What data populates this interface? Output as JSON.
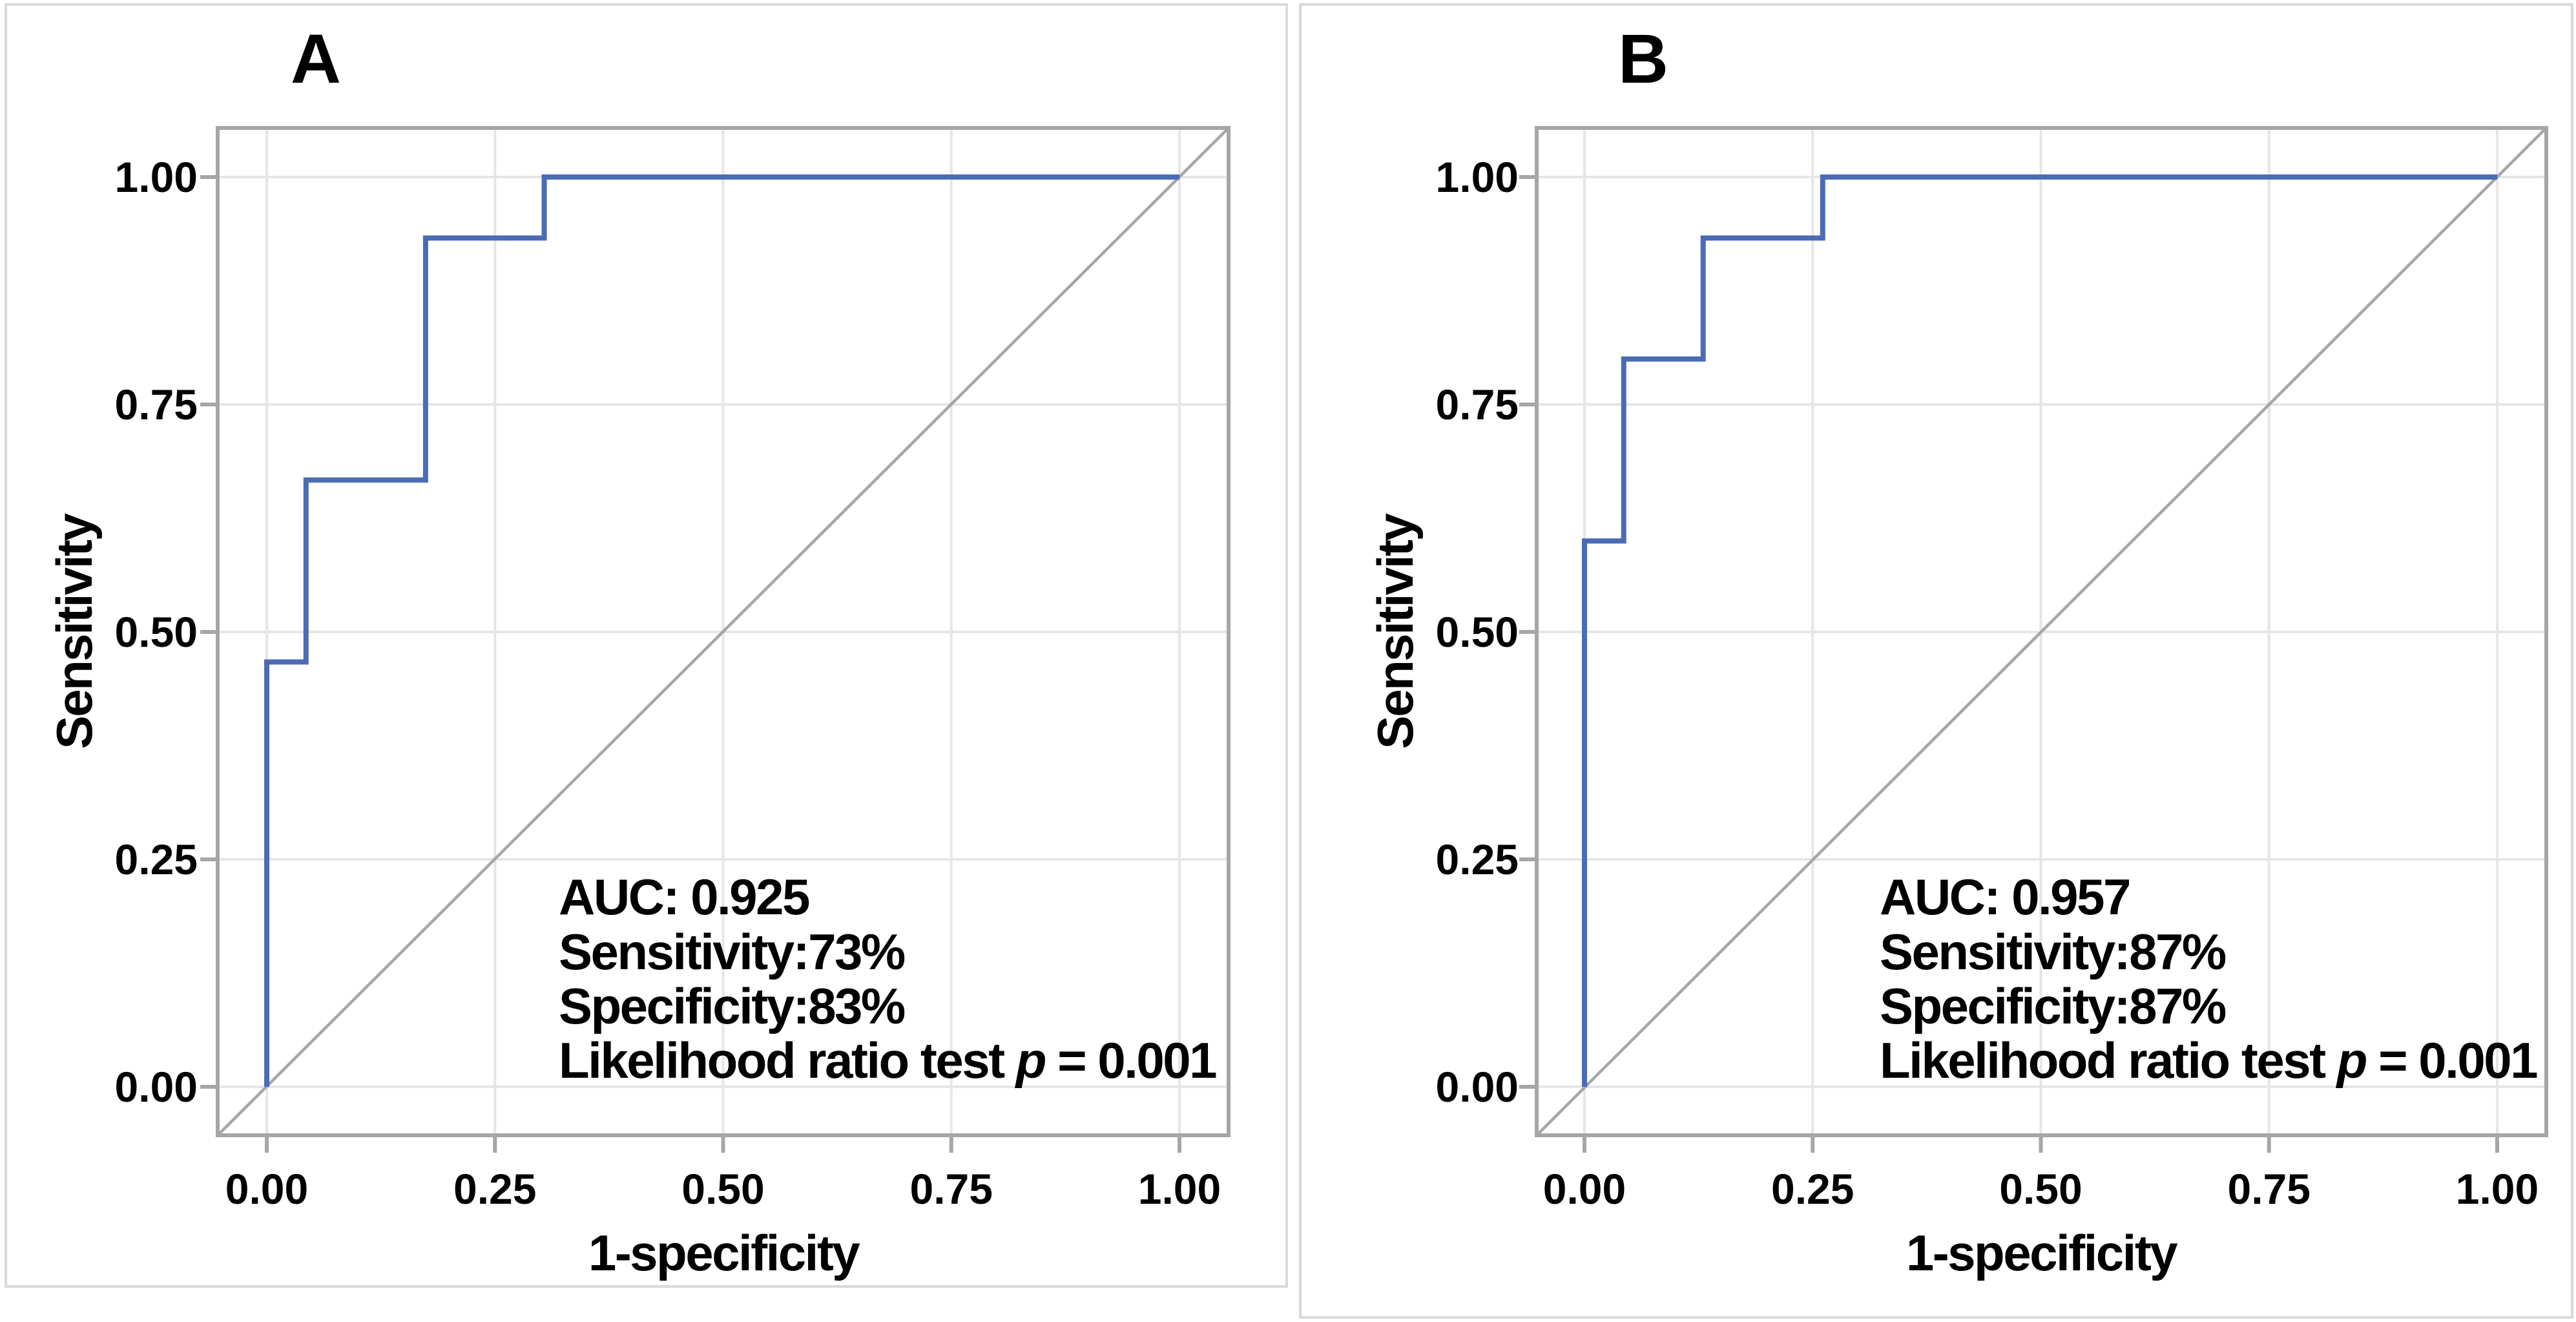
{
  "figure": {
    "background": "#ffffff",
    "colors": {
      "curve": "#4a6cb5",
      "reference_line": "#a6a6a6",
      "gridline": "#e6e6e6",
      "frame": "#a6a6a6",
      "tick": "#a6a6a6",
      "panel_border": "#d9d9d9",
      "text": "#000000"
    }
  },
  "panels": [
    {
      "letter": "A",
      "x_axis": {
        "label": "1-specificity",
        "tick_labels": [
          "0.00",
          "0.25",
          "0.50",
          "0.75",
          "1.00"
        ]
      },
      "y_axis": {
        "label": "Sensitivity",
        "tick_labels": [
          "1.00",
          "0.75",
          "0.50",
          "0.25",
          "0.00"
        ]
      },
      "annotation": {
        "auc_line": "AUC: 0.925",
        "sensitivity_line": "Sensitivity:73%",
        "specificity_line": "Specificity:83%",
        "lr_prefix": "Likelihood ratio test ",
        "lr_p": "p",
        "lr_suffix": " = 0.001"
      }
    },
    {
      "letter": "B",
      "x_axis": {
        "label": "1-specificity",
        "tick_labels": [
          "0.00",
          "0.25",
          "0.50",
          "0.75",
          "1.00"
        ]
      },
      "y_axis": {
        "label": "Sensitivity",
        "tick_labels": [
          "1.00",
          "0.75",
          "0.50",
          "0.25",
          "0.00"
        ]
      },
      "annotation": {
        "auc_line": "AUC: 0.957",
        "sensitivity_line": "Sensitivity:87%",
        "specificity_line": "Specificity:87%",
        "lr_prefix": "Likelihood ratio test ",
        "lr_p": "p",
        "lr_suffix": " = 0.001"
      }
    }
  ],
  "chart_data": [
    {
      "type": "line",
      "title": "A",
      "xlabel": "1-specificity",
      "ylabel": "Sensitivity",
      "xlim": [
        0,
        1
      ],
      "ylim": [
        0,
        1
      ],
      "x_ticks": [
        0,
        0.25,
        0.5,
        0.75,
        1.0
      ],
      "y_ticks": [
        0,
        0.25,
        0.5,
        0.75,
        1.0
      ],
      "grid": true,
      "legend": "none",
      "series": [
        {
          "name": "ROC curve",
          "style": "step",
          "color": "#4a6cb5",
          "x": [
            0,
            0,
            0.043,
            0.043,
            0.174,
            0.174,
            0.304,
            0.304,
            1.0
          ],
          "y": [
            0,
            0.467,
            0.467,
            0.667,
            0.667,
            0.933,
            0.933,
            1.0,
            1.0
          ]
        },
        {
          "name": "Reference diagonal",
          "style": "straight",
          "color": "#a6a6a6",
          "x": [
            0,
            1
          ],
          "y": [
            0,
            1
          ]
        }
      ],
      "annotations": {
        "AUC": 0.925,
        "sensitivity_pct": 73,
        "specificity_pct": 83,
        "likelihood_ratio_test_p": 0.001
      }
    },
    {
      "type": "line",
      "title": "B",
      "xlabel": "1-specificity",
      "ylabel": "Sensitivity",
      "xlim": [
        0,
        1
      ],
      "ylim": [
        0,
        1
      ],
      "x_ticks": [
        0,
        0.25,
        0.5,
        0.75,
        1.0
      ],
      "y_ticks": [
        0,
        0.25,
        0.5,
        0.75,
        1.0
      ],
      "grid": true,
      "legend": "none",
      "series": [
        {
          "name": "ROC curve",
          "style": "step",
          "color": "#4a6cb5",
          "x": [
            0,
            0,
            0.043,
            0.043,
            0.13,
            0.13,
            0.261,
            0.261,
            1.0
          ],
          "y": [
            0,
            0.6,
            0.6,
            0.8,
            0.8,
            0.933,
            0.933,
            1.0,
            1.0
          ]
        },
        {
          "name": "Reference diagonal",
          "style": "straight",
          "color": "#a6a6a6",
          "x": [
            0,
            1
          ],
          "y": [
            0,
            1
          ]
        }
      ],
      "annotations": {
        "AUC": 0.957,
        "sensitivity_pct": 87,
        "specificity_pct": 87,
        "likelihood_ratio_test_p": 0.001
      }
    }
  ]
}
